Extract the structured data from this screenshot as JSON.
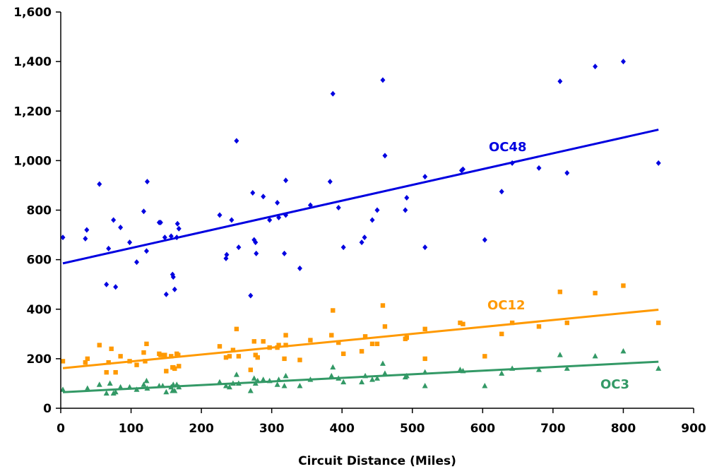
{
  "chart_data": {
    "type": "scatter",
    "title": "",
    "xlabel": "Circuit Distance (Miles)",
    "ylabel": "",
    "xlim": [
      0,
      900
    ],
    "ylim": [
      0,
      1600
    ],
    "xticks": [
      0,
      100,
      200,
      300,
      400,
      500,
      600,
      700,
      800,
      900
    ],
    "yticks": [
      0,
      200,
      400,
      600,
      800,
      1000,
      1200,
      1400,
      1600
    ],
    "xtick_labels": [
      "0",
      "100",
      "200",
      "300",
      "400",
      "500",
      "600",
      "700",
      "800",
      "900"
    ],
    "ytick_labels": [
      "0",
      "200",
      "400",
      "600",
      "800",
      "1,000",
      "1,200",
      "1,400",
      "1,600"
    ],
    "grid": false,
    "legend": "none",
    "series": [
      {
        "name": "OC48",
        "color": "#0000e0",
        "marker": "diamond",
        "trendline": {
          "x": [
            3,
            850
          ],
          "y": [
            585,
            1125
          ]
        },
        "x": [
          3,
          35,
          37,
          55,
          65,
          68,
          75,
          78,
          85,
          98,
          108,
          118,
          122,
          123,
          140,
          142,
          148,
          150,
          157,
          159,
          160,
          162,
          165,
          166,
          168,
          226,
          235,
          236,
          243,
          250,
          253,
          270,
          273,
          275,
          277,
          278,
          288,
          297,
          308,
          310,
          318,
          320,
          320,
          340,
          355,
          383,
          387,
          395,
          402,
          428,
          432,
          443,
          450,
          458,
          461,
          490,
          492,
          518,
          518,
          570,
          572,
          603,
          627,
          642,
          680,
          720,
          710,
          760,
          800,
          850
        ],
        "y": [
          690,
          685,
          720,
          905,
          500,
          645,
          760,
          490,
          730,
          670,
          590,
          795,
          635,
          915,
          750,
          750,
          690,
          460,
          695,
          540,
          530,
          480,
          690,
          745,
          725,
          780,
          605,
          620,
          760,
          1080,
          650,
          455,
          870,
          680,
          670,
          625,
          855,
          760,
          830,
          770,
          625,
          780,
          920,
          565,
          820,
          915,
          1270,
          810,
          650,
          670,
          690,
          760,
          800,
          1325,
          1020,
          800,
          850,
          650,
          935,
          960,
          965,
          680,
          875,
          990,
          970,
          950,
          1320,
          1380,
          1400,
          990
        ]
      },
      {
        "name": "OC12",
        "color": "#ff9900",
        "marker": "square",
        "trendline": {
          "x": [
            3,
            850
          ],
          "y": [
            162,
            398
          ]
        },
        "x": [
          3,
          35,
          38,
          55,
          65,
          68,
          72,
          78,
          85,
          98,
          108,
          118,
          120,
          122,
          140,
          142,
          148,
          150,
          157,
          159,
          160,
          162,
          165,
          167,
          168,
          226,
          235,
          240,
          245,
          250,
          253,
          270,
          275,
          277,
          280,
          288,
          297,
          308,
          310,
          318,
          320,
          320,
          340,
          355,
          385,
          387,
          395,
          402,
          428,
          433,
          443,
          450,
          458,
          461,
          490,
          492,
          518,
          518,
          568,
          572,
          603,
          627,
          642,
          680,
          710,
          720,
          760,
          800,
          850
        ],
        "y": [
          190,
          185,
          200,
          255,
          145,
          185,
          240,
          145,
          210,
          190,
          175,
          225,
          190,
          260,
          220,
          215,
          215,
          150,
          210,
          165,
          165,
          160,
          220,
          215,
          170,
          250,
          205,
          210,
          235,
          320,
          210,
          155,
          270,
          215,
          205,
          270,
          245,
          245,
          255,
          200,
          255,
          295,
          195,
          275,
          295,
          395,
          265,
          220,
          230,
          290,
          260,
          260,
          415,
          330,
          280,
          285,
          320,
          200,
          345,
          340,
          210,
          300,
          345,
          330,
          470,
          345,
          465,
          495,
          345
        ]
      },
      {
        "name": "OC3",
        "color": "#339966",
        "marker": "triangle",
        "trendline": {
          "x": [
            3,
            850
          ],
          "y": [
            65,
            188
          ]
        },
        "x": [
          3,
          38,
          55,
          65,
          70,
          75,
          78,
          85,
          98,
          108,
          118,
          122,
          123,
          140,
          145,
          150,
          157,
          159,
          160,
          162,
          165,
          168,
          226,
          235,
          240,
          245,
          250,
          253,
          270,
          275,
          277,
          280,
          288,
          297,
          308,
          310,
          318,
          320,
          340,
          355,
          385,
          387,
          395,
          402,
          428,
          433,
          443,
          450,
          458,
          461,
          490,
          492,
          518,
          518,
          568,
          572,
          603,
          627,
          642,
          680,
          710,
          720,
          760,
          800,
          850
        ],
        "y": [
          75,
          80,
          95,
          60,
          100,
          60,
          65,
          85,
          85,
          75,
          95,
          110,
          80,
          90,
          90,
          65,
          85,
          70,
          95,
          70,
          95,
          85,
          105,
          90,
          85,
          100,
          135,
          100,
          70,
          120,
          100,
          110,
          115,
          110,
          95,
          115,
          90,
          130,
          90,
          115,
          130,
          165,
          120,
          105,
          105,
          130,
          115,
          120,
          180,
          140,
          125,
          130,
          145,
          90,
          155,
          150,
          90,
          140,
          160,
          155,
          215,
          160,
          210,
          230,
          160
        ]
      }
    ]
  }
}
